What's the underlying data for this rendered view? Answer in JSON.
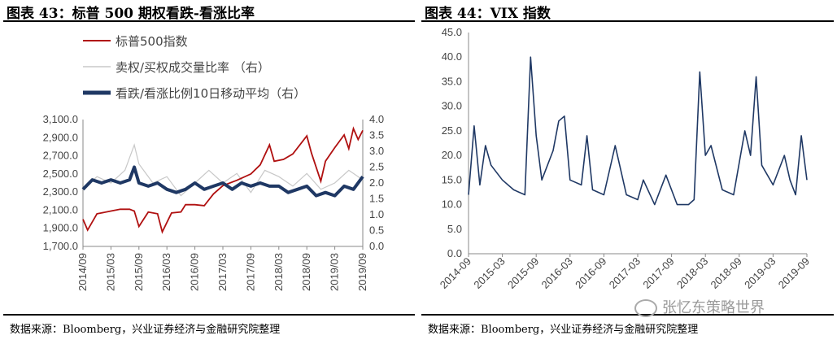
{
  "left": {
    "title": "图表 43：标普 500 期权看跌-看涨比率",
    "source": "数据来源：Bloomberg，兴业证券经济与金融研究院整理"
  },
  "right": {
    "title": "图表 44：VIX 指数",
    "source": "数据来源：Bloomberg，兴业证券经济与金融研究院整理"
  },
  "watermark": "张忆东策略世界",
  "colors": {
    "sp500": "#B01010",
    "volume_ratio": "#C8C8C8",
    "ma10": "#1F3864",
    "vix": "#1F3864"
  },
  "chart_data": [
    {
      "type": "line",
      "title": "图表 43：标普 500 期权看跌-看涨比率",
      "x_ticks": [
        "2014/09",
        "2015/03",
        "2015/09",
        "2016/03",
        "2016/09",
        "2017/03",
        "2017/09",
        "2018/03",
        "2018/09",
        "2019/03",
        "2019/09"
      ],
      "y_left_ticks": [
        "1,700.0",
        "1,900.0",
        "2,100.0",
        "2,300.0",
        "2,500.0",
        "2,700.0",
        "2,900.0",
        "3,100.0"
      ],
      "y_right_ticks": [
        "0.0",
        "0.5",
        "1.0",
        "1.5",
        "2.0",
        "2.5",
        "3.0",
        "3.5",
        "4.0"
      ],
      "ylim_left": [
        1700,
        3100
      ],
      "ylim_right": [
        0,
        4
      ],
      "legend_placement": "top-left",
      "series": [
        {
          "name": "标普500指数",
          "axis": "left",
          "x": [
            "2014/09",
            "2014/10",
            "2014/12",
            "2015/03",
            "2015/05",
            "2015/07",
            "2015/08",
            "2015/09",
            "2015/11",
            "2016/01",
            "2016/02",
            "2016/04",
            "2016/06",
            "2016/07",
            "2016/09",
            "2016/11",
            "2017/01",
            "2017/03",
            "2017/06",
            "2017/09",
            "2017/11",
            "2018/01",
            "2018/02",
            "2018/04",
            "2018/06",
            "2018/09",
            "2018/10",
            "2018/12",
            "2019/01",
            "2019/03",
            "2019/05",
            "2019/06",
            "2019/07",
            "2019/08",
            "2019/09"
          ],
          "values": [
            2000,
            1880,
            2060,
            2090,
            2110,
            2110,
            2090,
            1920,
            2080,
            2060,
            1860,
            2070,
            2080,
            2160,
            2160,
            2150,
            2280,
            2370,
            2430,
            2500,
            2600,
            2820,
            2640,
            2660,
            2720,
            2920,
            2730,
            2420,
            2640,
            2790,
            2930,
            2780,
            3000,
            2880,
            2980
          ]
        },
        {
          "name": "卖权/买权成交量比率 （右）",
          "axis": "right",
          "x": [
            "2014/09",
            "2014/12",
            "2015/03",
            "2015/06",
            "2015/08",
            "2015/09",
            "2015/12",
            "2016/03",
            "2016/06",
            "2016/09",
            "2016/12",
            "2017/03",
            "2017/06",
            "2017/09",
            "2017/12",
            "2018/03",
            "2018/06",
            "2018/09",
            "2018/12",
            "2019/03",
            "2019/06",
            "2019/09"
          ],
          "values": [
            1.8,
            2.2,
            2.0,
            2.4,
            3.2,
            2.6,
            2.0,
            2.2,
            1.6,
            2.0,
            2.4,
            2.0,
            2.3,
            1.7,
            2.4,
            2.2,
            1.9,
            2.3,
            1.8,
            2.0,
            2.4,
            2.1
          ]
        },
        {
          "name": "看跌/看涨比例10日移动平均（右）",
          "axis": "right",
          "x": [
            "2014/09",
            "2014/11",
            "2015/01",
            "2015/03",
            "2015/05",
            "2015/07",
            "2015/08",
            "2015/09",
            "2015/11",
            "2016/01",
            "2016/03",
            "2016/05",
            "2016/07",
            "2016/09",
            "2016/11",
            "2017/01",
            "2017/03",
            "2017/05",
            "2017/07",
            "2017/09",
            "2017/11",
            "2018/01",
            "2018/03",
            "2018/05",
            "2018/07",
            "2018/09",
            "2018/11",
            "2019/01",
            "2019/03",
            "2019/05",
            "2019/07",
            "2019/09"
          ],
          "values": [
            1.8,
            2.1,
            2.0,
            2.1,
            2.0,
            2.1,
            2.5,
            2.0,
            1.9,
            2.0,
            1.8,
            1.7,
            1.8,
            2.0,
            1.8,
            1.9,
            2.0,
            1.8,
            2.0,
            1.9,
            2.0,
            1.9,
            1.9,
            1.7,
            1.8,
            1.9,
            1.6,
            1.7,
            1.6,
            1.9,
            1.8,
            2.2
          ]
        }
      ]
    },
    {
      "type": "line",
      "title": "图表 44：VIX 指数",
      "x_ticks": [
        "2014-09",
        "2015-03",
        "2015-09",
        "2016-03",
        "2016-09",
        "2017-03",
        "2017-09",
        "2018-03",
        "2018-09",
        "2019-03",
        "2019-09"
      ],
      "y_ticks": [
        "0.0",
        "5.0",
        "10.0",
        "15.0",
        "20.0",
        "25.0",
        "30.0",
        "35.0",
        "40.0",
        "45.0"
      ],
      "ylim": [
        0,
        45
      ],
      "series": [
        {
          "name": "VIX",
          "x": [
            "2014-09",
            "2014-10",
            "2014-11",
            "2014-12",
            "2015-01",
            "2015-03",
            "2015-05",
            "2015-07",
            "2015-08",
            "2015-09",
            "2015-10",
            "2015-12",
            "2016-01",
            "2016-02",
            "2016-03",
            "2016-05",
            "2016-06",
            "2016-07",
            "2016-09",
            "2016-11",
            "2017-01",
            "2017-03",
            "2017-04",
            "2017-06",
            "2017-08",
            "2017-10",
            "2017-12",
            "2018-01",
            "2018-02",
            "2018-03",
            "2018-04",
            "2018-06",
            "2018-08",
            "2018-10",
            "2018-11",
            "2018-12",
            "2019-01",
            "2019-03",
            "2019-05",
            "2019-06",
            "2019-07",
            "2019-08",
            "2019-09"
          ],
          "values": [
            12,
            26,
            14,
            22,
            18,
            15,
            13,
            12,
            40,
            24,
            15,
            21,
            27,
            28,
            15,
            14,
            24,
            13,
            12,
            22,
            12,
            11,
            15,
            10,
            16,
            10,
            10,
            11,
            37,
            20,
            22,
            13,
            12,
            25,
            20,
            36,
            18,
            14,
            20,
            15,
            12,
            24,
            15
          ]
        }
      ]
    }
  ]
}
